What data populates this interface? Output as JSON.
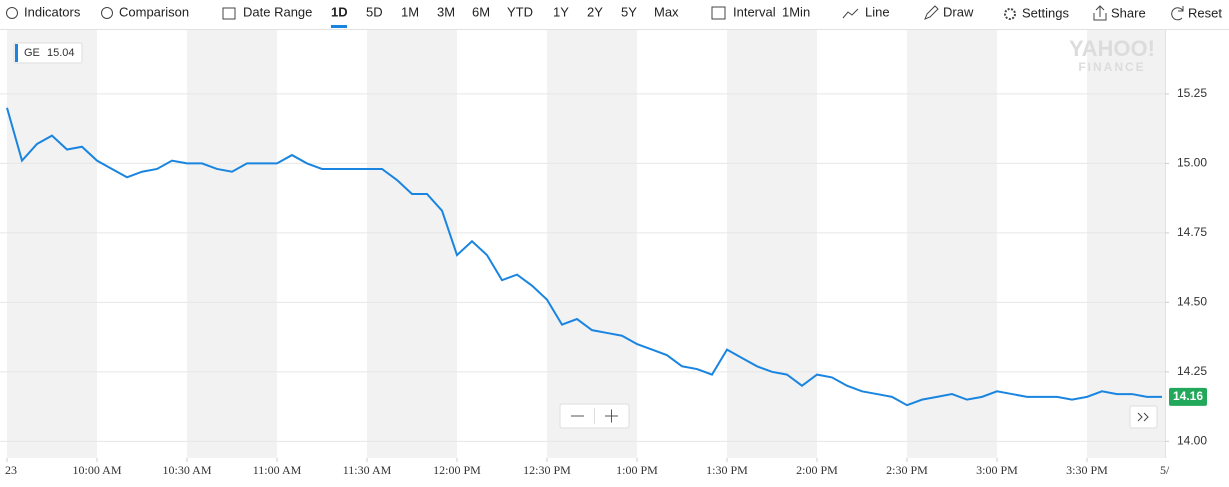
{
  "toolbar": {
    "indicators": "Indicators",
    "comparison": "Comparison",
    "date_range": "Date Range",
    "ranges": [
      "1D",
      "5D",
      "1M",
      "3M",
      "6M",
      "YTD",
      "1Y",
      "2Y",
      "5Y",
      "Max"
    ],
    "interval": "Interval",
    "interval_value": "1Min",
    "chart_type": "Line",
    "draw": "Draw",
    "settings": "Settings",
    "share": "Share",
    "reset": "Reset"
  },
  "watermark": {
    "line1": "YAHOO!",
    "line2": "FINANCE"
  },
  "chart_data": {
    "type": "line",
    "legend": {
      "symbol": "GE",
      "value": 15.04
    },
    "last_price": 14.16,
    "x_edge_label": "5/",
    "categories": [
      "23",
      null,
      null,
      null,
      null,
      null,
      "10:00 AM",
      null,
      null,
      null,
      null,
      null,
      "10:30 AM",
      null,
      null,
      null,
      null,
      null,
      "11:00 AM",
      null,
      null,
      null,
      null,
      null,
      "11:30 AM",
      null,
      null,
      null,
      null,
      null,
      "12:00 PM",
      null,
      null,
      null,
      null,
      null,
      "12:30 PM",
      null,
      null,
      null,
      null,
      null,
      "1:00 PM",
      null,
      null,
      null,
      null,
      null,
      "1:30 PM",
      null,
      null,
      null,
      null,
      null,
      "2:00 PM",
      null,
      null,
      null,
      null,
      null,
      "2:30 PM",
      null,
      null,
      null,
      null,
      null,
      "3:00 PM",
      null,
      null,
      null,
      null,
      null,
      "3:30 PM",
      null,
      null,
      null,
      null,
      null
    ],
    "series": [
      {
        "name": "GE",
        "color": "#1a85e0",
        "values": [
          15.2,
          15.01,
          15.07,
          15.1,
          15.05,
          15.06,
          15.01,
          14.98,
          14.95,
          14.97,
          14.98,
          15.01,
          15.0,
          15.0,
          14.98,
          14.97,
          15.0,
          15.0,
          15.0,
          15.03,
          15.0,
          14.98,
          14.98,
          14.98,
          14.98,
          14.98,
          14.94,
          14.89,
          14.89,
          14.83,
          14.67,
          14.72,
          14.67,
          14.58,
          14.6,
          14.56,
          14.51,
          14.42,
          14.44,
          14.4,
          14.39,
          14.38,
          14.35,
          14.33,
          14.31,
          14.27,
          14.26,
          14.24,
          14.33,
          14.3,
          14.27,
          14.25,
          14.24,
          14.2,
          14.24,
          14.23,
          14.2,
          14.18,
          14.17,
          14.16,
          14.13,
          14.15,
          14.16,
          14.17,
          14.15,
          14.16,
          14.18,
          14.17,
          14.16,
          14.16,
          14.16,
          14.15,
          14.16,
          14.18,
          14.17,
          14.17,
          14.16,
          14.16
        ]
      }
    ],
    "ylim": [
      13.94,
      15.48
    ],
    "yticks": [
      {
        "value": 14,
        "label": "14.00"
      },
      14.25,
      {
        "value": 14.5,
        "label": "14.50"
      },
      14.75,
      {
        "value": 15,
        "label": "15.00"
      },
      15.25
    ],
    "grid": true
  }
}
